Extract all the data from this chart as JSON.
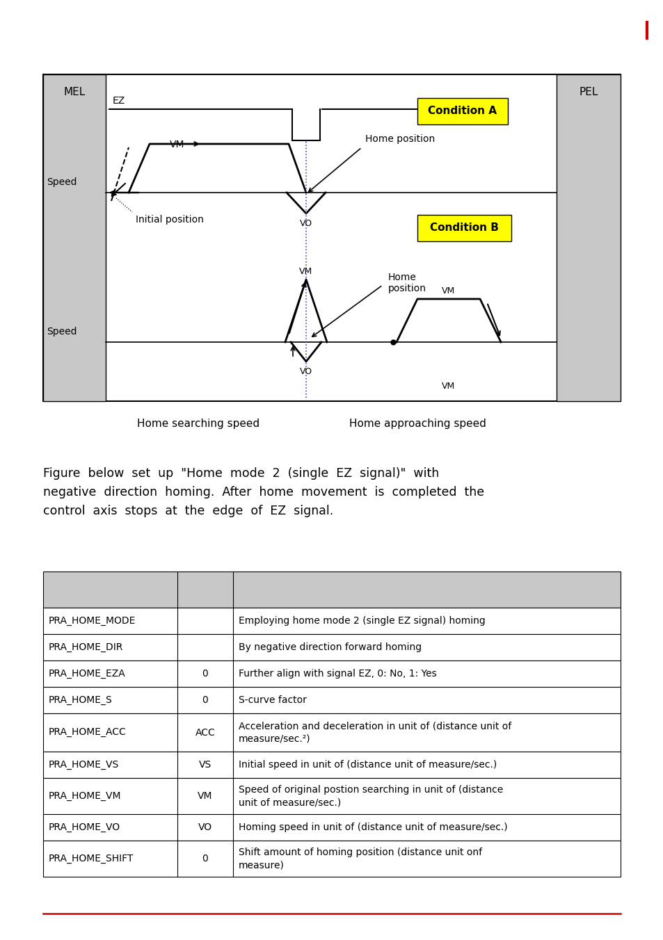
{
  "bg_color": "#ffffff",
  "gray_color": "#c8c8c8",
  "yellow_color": "#ffff00",
  "black": "#000000",
  "blue": "#4444cc",
  "red": "#cc0000",
  "table_rows": [
    [
      "PRA_HOME_MODE",
      "",
      "Employing home mode 2 (single EZ signal) homing"
    ],
    [
      "PRA_HOME_DIR",
      "",
      "By negative direction forward homing"
    ],
    [
      "PRA_HOME_EZA",
      "0",
      "Further align with signal EZ, 0: No, 1: Yes"
    ],
    [
      "PRA_HOME_S",
      "0",
      "S-curve factor"
    ],
    [
      "PRA_HOME_ACC",
      "ACC",
      "Acceleration and deceleration in unit of (distance unit of\nmeasure/sec.²)"
    ],
    [
      "PRA_HOME_VS",
      "VS",
      "Initial speed in unit of (distance unit of measure/sec.)"
    ],
    [
      "PRA_HOME_VM",
      "VM",
      "Speed of original postion searching in unit of (distance\nunit of measure/sec.)"
    ],
    [
      "PRA_HOME_VO",
      "VO",
      "Homing speed in unit of (distance unit of measure/sec.)"
    ],
    [
      "PRA_HOME_SHIFT",
      "0",
      "Shift amount of homing position (distance unit onf\nmeasure)"
    ]
  ]
}
